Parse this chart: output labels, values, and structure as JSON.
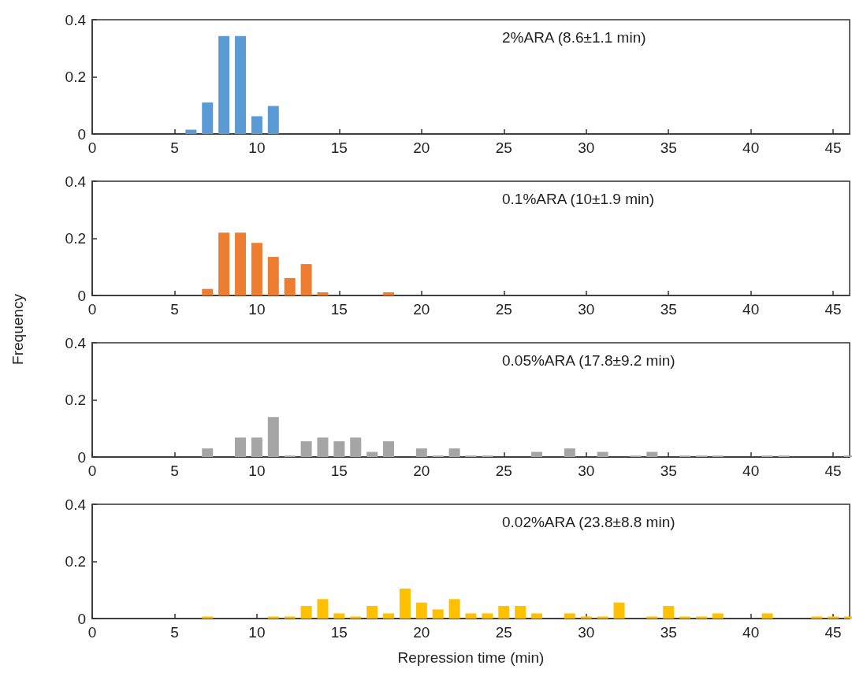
{
  "chart_data": [
    {
      "type": "bar",
      "color": "#5b9bd5",
      "x": [
        6,
        7,
        8,
        9,
        10,
        11
      ],
      "values": [
        0.015,
        0.11,
        0.343,
        0.343,
        0.062,
        0.098
      ],
      "xlim": [
        0,
        46
      ],
      "xticks": [
        0,
        5,
        10,
        15,
        20,
        25,
        30,
        35,
        40,
        45
      ],
      "ylim": [
        0,
        0.4
      ],
      "yticks": [
        0,
        0.2,
        0.4
      ],
      "grid": false,
      "annotations": [
        "2%ARA (8.6±1.1 min)"
      ]
    },
    {
      "type": "bar",
      "color": "#ed7d31",
      "x": [
        7,
        8,
        9,
        10,
        11,
        12,
        13,
        14,
        18
      ],
      "values": [
        0.023,
        0.22,
        0.22,
        0.184,
        0.135,
        0.061,
        0.11,
        0.011,
        0.011
      ],
      "xlim": [
        0,
        46
      ],
      "xticks": [
        0,
        5,
        10,
        15,
        20,
        25,
        30,
        35,
        40,
        45
      ],
      "ylim": [
        0,
        0.4
      ],
      "yticks": [
        0,
        0.2,
        0.4
      ],
      "grid": false,
      "ylabel": "Frequency",
      "annotations": [
        "0.1%ARA (10±1.9 min)"
      ]
    },
    {
      "type": "bar",
      "color": "#a5a5a5",
      "x": [
        7,
        9,
        10,
        11,
        12,
        13,
        14,
        15,
        16,
        17,
        18,
        20,
        21,
        22,
        23,
        24,
        27,
        29,
        31,
        33,
        34,
        36,
        37,
        38,
        41,
        42,
        46
      ],
      "values": [
        0.03,
        0.068,
        0.068,
        0.14,
        0.005,
        0.055,
        0.068,
        0.055,
        0.068,
        0.018,
        0.055,
        0.03,
        0.005,
        0.03,
        0.005,
        0.005,
        0.018,
        0.03,
        0.018,
        0.005,
        0.018,
        0.005,
        0.005,
        0.005,
        0.005,
        0.005,
        0.005
      ],
      "xlim": [
        0,
        46
      ],
      "xticks": [
        0,
        5,
        10,
        15,
        20,
        25,
        30,
        35,
        40,
        45
      ],
      "ylim": [
        0,
        0.4
      ],
      "yticks": [
        0,
        0.2,
        0.4
      ],
      "grid": false,
      "annotations": [
        "0.05%ARA (17.8±9.2 min)"
      ]
    },
    {
      "type": "bar",
      "color": "#ffc000",
      "x": [
        7,
        11,
        12,
        13,
        14,
        15,
        16,
        17,
        18,
        19,
        20,
        21,
        22,
        23,
        24,
        25,
        26,
        27,
        29,
        30,
        31,
        32,
        34,
        35,
        36,
        37,
        38,
        41,
        44,
        45,
        46
      ],
      "values": [
        0.007,
        0.007,
        0.007,
        0.044,
        0.068,
        0.018,
        0.007,
        0.044,
        0.018,
        0.105,
        0.056,
        0.032,
        0.068,
        0.018,
        0.018,
        0.044,
        0.044,
        0.018,
        0.018,
        0.007,
        0.007,
        0.056,
        0.007,
        0.044,
        0.007,
        0.007,
        0.018,
        0.018,
        0.007,
        0.007,
        0.007
      ],
      "xlim": [
        0,
        46
      ],
      "xticks": [
        0,
        5,
        10,
        15,
        20,
        25,
        30,
        35,
        40,
        45
      ],
      "ylim": [
        0,
        0.4
      ],
      "yticks": [
        0,
        0.2,
        0.4
      ],
      "grid": false,
      "xlabel": "Repression time (min)",
      "annotations": [
        "0.02%ARA (23.8±8.8 min)"
      ]
    }
  ]
}
